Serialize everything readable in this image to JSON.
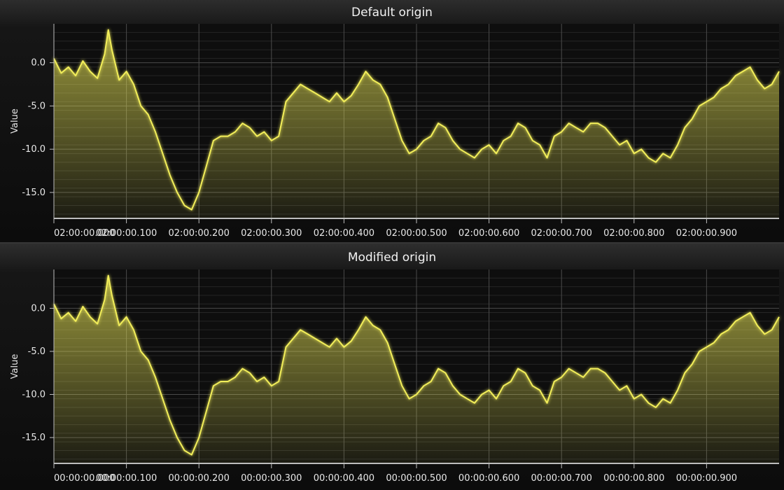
{
  "colors": {
    "series": "#f2ee5a",
    "grid": "#4a4a4a",
    "axis": "#bdbdbd",
    "text": "#e8e8e8"
  },
  "chart_data": [
    {
      "type": "area",
      "title": "Default origin",
      "ylabel": "Value",
      "xlabel": "",
      "xlim": [
        0,
        1
      ],
      "ylim": [
        -18,
        4.5
      ],
      "grid": true,
      "x_tick_labels": [
        "02:00:00.000",
        "02:00:00.100",
        "02:00:00.200",
        "02:00:00.300",
        "02:00:00.400",
        "02:00:00.500",
        "02:00:00.600",
        "02:00:00.700",
        "02:00:00.800",
        "02:00:00.900"
      ],
      "y_tick_labels": [
        "0.0",
        "-5.0",
        "-10.0",
        "-15.0"
      ],
      "series": [
        {
          "x": [
            0,
            0.01,
            0.02,
            0.03,
            0.04,
            0.05,
            0.06,
            0.07,
            0.075,
            0.08,
            0.09,
            0.1,
            0.11,
            0.12,
            0.13,
            0.14,
            0.15,
            0.16,
            0.17,
            0.18,
            0.19,
            0.2,
            0.21,
            0.22,
            0.23,
            0.24,
            0.25,
            0.26,
            0.27,
            0.28,
            0.29,
            0.3,
            0.31,
            0.32,
            0.33,
            0.34,
            0.35,
            0.36,
            0.37,
            0.38,
            0.39,
            0.4,
            0.41,
            0.42,
            0.43,
            0.44,
            0.45,
            0.46,
            0.47,
            0.48,
            0.49,
            0.5,
            0.51,
            0.52,
            0.53,
            0.54,
            0.55,
            0.56,
            0.57,
            0.58,
            0.59,
            0.6,
            0.61,
            0.62,
            0.63,
            0.64,
            0.65,
            0.66,
            0.67,
            0.68,
            0.69,
            0.7,
            0.71,
            0.72,
            0.73,
            0.74,
            0.75,
            0.76,
            0.77,
            0.78,
            0.79,
            0.8,
            0.81,
            0.82,
            0.83,
            0.84,
            0.85,
            0.86,
            0.87,
            0.88,
            0.89,
            0.9,
            0.91,
            0.92,
            0.93,
            0.94,
            0.95,
            0.96,
            0.97,
            0.98,
            0.99,
            1.0
          ],
          "values": [
            0.5,
            -1.2,
            -0.5,
            -1.5,
            0.2,
            -1.0,
            -1.8,
            1.0,
            3.8,
            1.5,
            -2.0,
            -1.0,
            -2.5,
            -5.0,
            -6.0,
            -8.0,
            -10.5,
            -13.0,
            -15.0,
            -16.5,
            -17.0,
            -15.0,
            -12.0,
            -9.0,
            -8.5,
            -8.5,
            -8.0,
            -7.0,
            -7.5,
            -8.5,
            -8.0,
            -9.0,
            -8.5,
            -4.5,
            -3.5,
            -2.5,
            -3.0,
            -3.5,
            -4.0,
            -4.5,
            -3.5,
            -4.5,
            -3.8,
            -2.5,
            -1.0,
            -2.0,
            -2.5,
            -4.0,
            -6.5,
            -9.0,
            -10.5,
            -10.0,
            -9.0,
            -8.5,
            -7.0,
            -7.5,
            -9.0,
            -10.0,
            -10.5,
            -11.0,
            -10.0,
            -9.5,
            -10.5,
            -9.0,
            -8.5,
            -7.0,
            -7.5,
            -9.0,
            -9.5,
            -11.0,
            -8.5,
            -8.0,
            -7.0,
            -7.5,
            -8.0,
            -7.0,
            -7.0,
            -7.5,
            -8.5,
            -9.5,
            -9.0,
            -10.5,
            -10.0,
            -11.0,
            -11.5,
            -10.5,
            -11.0,
            -9.5,
            -7.5,
            -6.5,
            -5.0,
            -4.5,
            -4.0,
            -3.0,
            -2.5,
            -1.5,
            -1.0,
            -0.5,
            -2.0,
            -3.0,
            -2.5,
            -1.0
          ]
        }
      ]
    },
    {
      "type": "area",
      "title": "Modified origin",
      "ylabel": "Value",
      "xlabel": "",
      "xlim": [
        0,
        1
      ],
      "ylim": [
        -18,
        4.5
      ],
      "grid": true,
      "x_tick_labels": [
        "00:00:00.000",
        "00:00:00.100",
        "00:00:00.200",
        "00:00:00.300",
        "00:00:00.400",
        "00:00:00.500",
        "00:00:00.600",
        "00:00:00.700",
        "00:00:00.800",
        "00:00:00.900"
      ],
      "y_tick_labels": [
        "0.0",
        "-5.0",
        "-10.0",
        "-15.0"
      ],
      "series": [
        {
          "x": [
            0,
            0.01,
            0.02,
            0.03,
            0.04,
            0.05,
            0.06,
            0.07,
            0.075,
            0.08,
            0.09,
            0.1,
            0.11,
            0.12,
            0.13,
            0.14,
            0.15,
            0.16,
            0.17,
            0.18,
            0.19,
            0.2,
            0.21,
            0.22,
            0.23,
            0.24,
            0.25,
            0.26,
            0.27,
            0.28,
            0.29,
            0.3,
            0.31,
            0.32,
            0.33,
            0.34,
            0.35,
            0.36,
            0.37,
            0.38,
            0.39,
            0.4,
            0.41,
            0.42,
            0.43,
            0.44,
            0.45,
            0.46,
            0.47,
            0.48,
            0.49,
            0.5,
            0.51,
            0.52,
            0.53,
            0.54,
            0.55,
            0.56,
            0.57,
            0.58,
            0.59,
            0.6,
            0.61,
            0.62,
            0.63,
            0.64,
            0.65,
            0.66,
            0.67,
            0.68,
            0.69,
            0.7,
            0.71,
            0.72,
            0.73,
            0.74,
            0.75,
            0.76,
            0.77,
            0.78,
            0.79,
            0.8,
            0.81,
            0.82,
            0.83,
            0.84,
            0.85,
            0.86,
            0.87,
            0.88,
            0.89,
            0.9,
            0.91,
            0.92,
            0.93,
            0.94,
            0.95,
            0.96,
            0.97,
            0.98,
            0.99,
            1.0
          ],
          "values": [
            0.5,
            -1.2,
            -0.5,
            -1.5,
            0.2,
            -1.0,
            -1.8,
            1.0,
            3.8,
            1.5,
            -2.0,
            -1.0,
            -2.5,
            -5.0,
            -6.0,
            -8.0,
            -10.5,
            -13.0,
            -15.0,
            -16.5,
            -17.0,
            -15.0,
            -12.0,
            -9.0,
            -8.5,
            -8.5,
            -8.0,
            -7.0,
            -7.5,
            -8.5,
            -8.0,
            -9.0,
            -8.5,
            -4.5,
            -3.5,
            -2.5,
            -3.0,
            -3.5,
            -4.0,
            -4.5,
            -3.5,
            -4.5,
            -3.8,
            -2.5,
            -1.0,
            -2.0,
            -2.5,
            -4.0,
            -6.5,
            -9.0,
            -10.5,
            -10.0,
            -9.0,
            -8.5,
            -7.0,
            -7.5,
            -9.0,
            -10.0,
            -10.5,
            -11.0,
            -10.0,
            -9.5,
            -10.5,
            -9.0,
            -8.5,
            -7.0,
            -7.5,
            -9.0,
            -9.5,
            -11.0,
            -8.5,
            -8.0,
            -7.0,
            -7.5,
            -8.0,
            -7.0,
            -7.0,
            -7.5,
            -8.5,
            -9.5,
            -9.0,
            -10.5,
            -10.0,
            -11.0,
            -11.5,
            -10.5,
            -11.0,
            -9.5,
            -7.5,
            -6.5,
            -5.0,
            -4.5,
            -4.0,
            -3.0,
            -2.5,
            -1.5,
            -1.0,
            -0.5,
            -2.0,
            -3.0,
            -2.5,
            -1.0
          ]
        }
      ]
    }
  ]
}
